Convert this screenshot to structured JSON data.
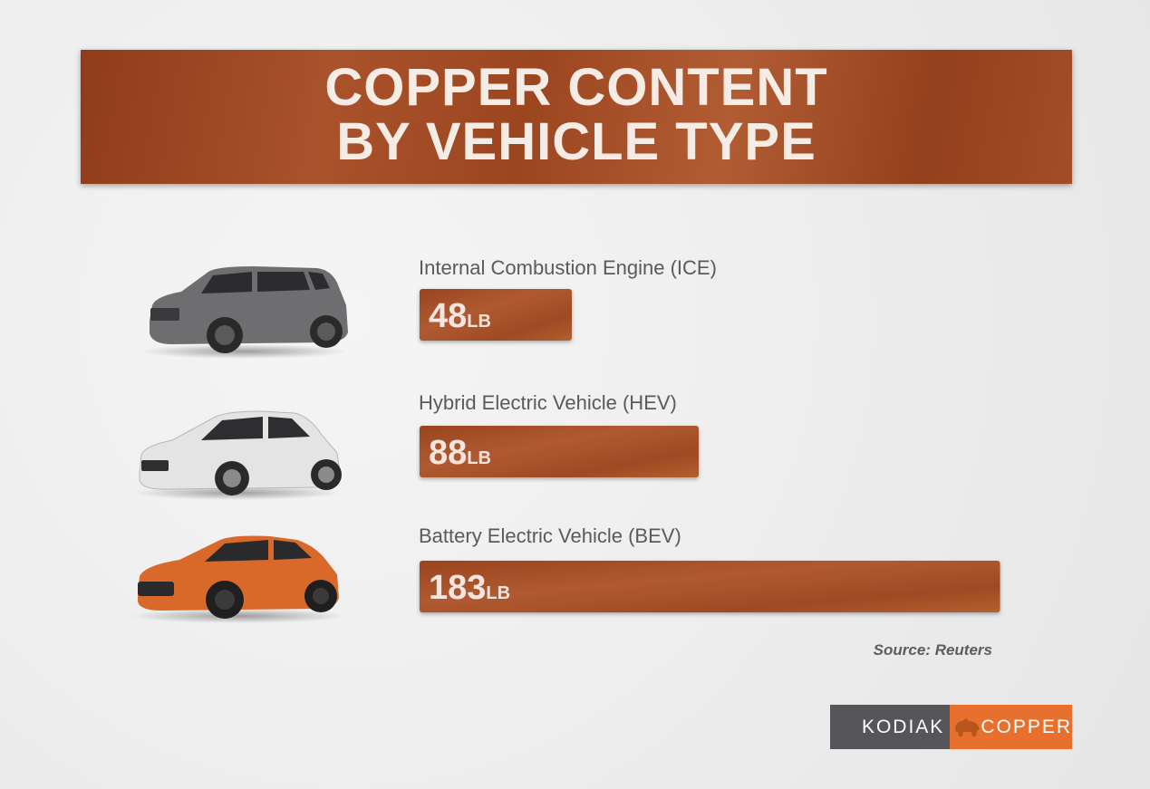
{
  "title": {
    "line1": "COPPER CONTENT",
    "line2": "BY VEHICLE TYPE"
  },
  "colors": {
    "copper_dark": "#8f3c1a",
    "copper_light": "#b15c33",
    "label_gray": "#5a5a5a",
    "logo_gray": "#56565a",
    "logo_orange": "#e8702f"
  },
  "chart_data": {
    "type": "bar",
    "orientation": "horizontal",
    "categories": [
      "Internal Combustion Engine (ICE)",
      "Hybrid Electric Vehicle (HEV)",
      "Battery Electric Vehicle (BEV)"
    ],
    "values": [
      48,
      88,
      183
    ],
    "unit": "LB",
    "vehicle_images": [
      "gray-suv",
      "white-hatchback",
      "orange-suv"
    ]
  },
  "source": "Source: Reuters",
  "logo": {
    "left": "KODIAK",
    "right": "COPPER",
    "icon": "bear-icon"
  }
}
